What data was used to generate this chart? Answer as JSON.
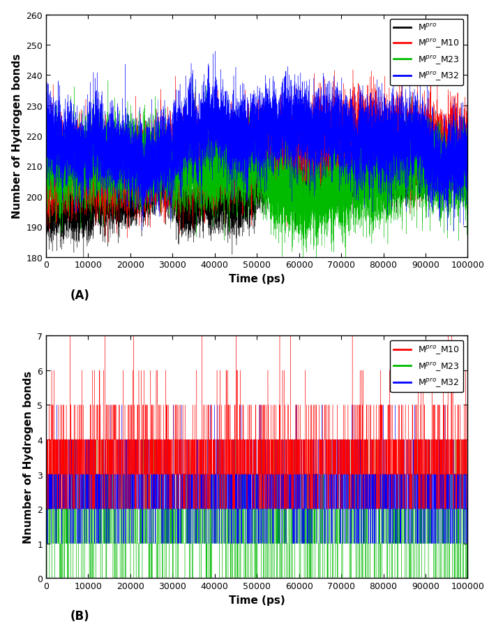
{
  "panel_A": {
    "xlabel": "Time (ps)",
    "ylabel": "Number of Hydrogen bonds",
    "xlim": [
      0,
      100000
    ],
    "ylim": [
      180,
      260
    ],
    "yticks": [
      180,
      190,
      200,
      210,
      220,
      230,
      240,
      250,
      260
    ],
    "xticks": [
      0,
      10000,
      20000,
      30000,
      40000,
      50000,
      60000,
      70000,
      80000,
      90000,
      100000
    ],
    "label_A": "(A)",
    "series": {
      "Mpro": {
        "color": "#000000",
        "mean": 205,
        "std": 6,
        "seed": 1
      },
      "Mpro_M10": {
        "color": "#ff0000",
        "mean": 214,
        "std": 7,
        "seed": 2
      },
      "Mpro_M23": {
        "color": "#00bb00",
        "mean": 208,
        "std": 7,
        "seed": 3
      },
      "Mpro_M32": {
        "color": "#0000ff",
        "mean": 218,
        "std": 7,
        "seed": 4
      }
    },
    "series_order": [
      "Mpro",
      "Mpro_M10",
      "Mpro_M23",
      "Mpro_M32"
    ],
    "n_points": 10000,
    "legend_labels": [
      "M$^{pro}$",
      "M$^{pro}$_M10",
      "M$^{pro}$_M23",
      "M$^{pro}$_M32"
    ],
    "legend_colors": [
      "#000000",
      "#ff0000",
      "#00bb00",
      "#0000ff"
    ],
    "linewidth": 0.25
  },
  "panel_B": {
    "xlabel": "Time (ps)",
    "ylabel": "Nnumber of Hydrogen bonds",
    "xlim": [
      0,
      100000
    ],
    "ylim": [
      0,
      7
    ],
    "yticks": [
      0,
      1,
      2,
      3,
      4,
      5,
      6,
      7
    ],
    "xticks": [
      0,
      10000,
      20000,
      30000,
      40000,
      50000,
      60000,
      70000,
      80000,
      90000,
      100000
    ],
    "label_B": "(B)",
    "series": {
      "Mpro_M10": {
        "color": "#ff0000",
        "seed": 10
      },
      "Mpro_M23": {
        "color": "#00bb00",
        "seed": 20
      },
      "Mpro_M32": {
        "color": "#0000ff",
        "seed": 30
      }
    },
    "series_order": [
      "Mpro_M23",
      "Mpro_M32",
      "Mpro_M10"
    ],
    "n_points": 10000,
    "legend_labels": [
      "M$^{pro}$_M10",
      "M$^{pro}$_M23",
      "M$^{pro}$_M32"
    ],
    "legend_colors": [
      "#ff0000",
      "#00bb00",
      "#0000ff"
    ],
    "linewidth": 0.25
  },
  "fig_width": 7.11,
  "fig_height": 9.04,
  "dpi": 100,
  "background_color": "#ffffff"
}
